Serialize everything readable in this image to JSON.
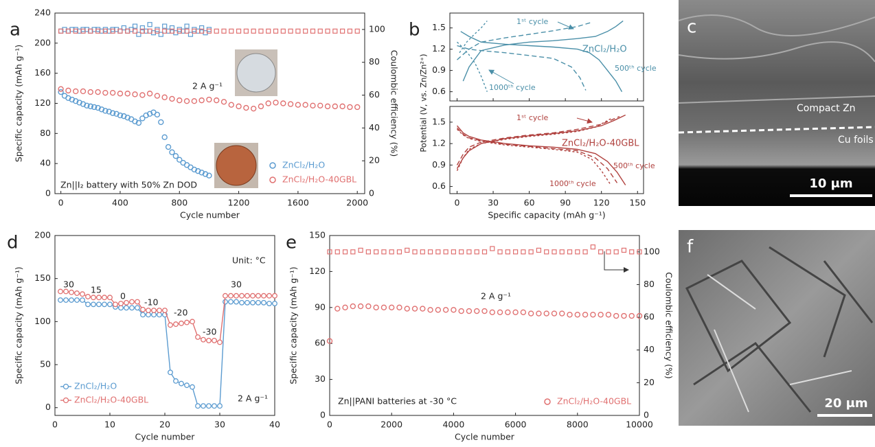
{
  "chart_data": [
    {
      "type": "scatter",
      "panel": "a",
      "xlabel": "Cycle number",
      "ylabel": "Specific capacity (mAh g⁻¹)",
      "y2label": "Coulombic efficiency (%)",
      "xlim": [
        -40,
        2050
      ],
      "xticks": [
        0,
        400,
        800,
        1200,
        1600,
        2000
      ],
      "ylim": [
        0,
        240
      ],
      "yticks": [
        0,
        40,
        80,
        120,
        160,
        200,
        240
      ],
      "y2lim": [
        0,
        110
      ],
      "y2ticks": [
        0,
        20,
        40,
        60,
        80,
        100
      ],
      "annotations": [
        "2 A g⁻¹",
        "Zn||I₂ battery with 50% Zn DOD"
      ],
      "legend": "lower right",
      "series": [
        {
          "name": "ZnCl₂/H₂O",
          "color": "#5b9bd0",
          "x": [
            0,
            25,
            50,
            75,
            100,
            125,
            150,
            175,
            200,
            225,
            250,
            275,
            300,
            325,
            350,
            375,
            400,
            425,
            450,
            475,
            500,
            525,
            550,
            575,
            600,
            625,
            650,
            675,
            700,
            725,
            750,
            775,
            800,
            825,
            850,
            875,
            900,
            925,
            950,
            975,
            1000
          ],
          "values": [
            135,
            130,
            127,
            125,
            123,
            121,
            119,
            117,
            116,
            115,
            114,
            112,
            110,
            109,
            107,
            106,
            104,
            103,
            101,
            99,
            96,
            94,
            100,
            104,
            106,
            108,
            105,
            95,
            75,
            62,
            55,
            50,
            45,
            41,
            38,
            35,
            32,
            30,
            28,
            26,
            24
          ],
          "y2_values": [
            99,
            100,
            99,
            100,
            100,
            99,
            100,
            100,
            99,
            100,
            100,
            99,
            100,
            99,
            100,
            100,
            99,
            101,
            99,
            100,
            102,
            97,
            101,
            99,
            103,
            98,
            100,
            97,
            102,
            99,
            101,
            98,
            100,
            99,
            102,
            97,
            100,
            99,
            101,
            98,
            100
          ]
        },
        {
          "name": "ZnCl₂/H₂O-40GBL",
          "color": "#e07070",
          "x": [
            0,
            50,
            100,
            150,
            200,
            250,
            300,
            350,
            400,
            450,
            500,
            550,
            600,
            650,
            700,
            750,
            800,
            850,
            900,
            950,
            1000,
            1050,
            1100,
            1150,
            1200,
            1250,
            1300,
            1350,
            1400,
            1450,
            1500,
            1550,
            1600,
            1650,
            1700,
            1750,
            1800,
            1850,
            1900,
            1950,
            2000
          ],
          "values": [
            139,
            137,
            136,
            136,
            135,
            135,
            134,
            134,
            133,
            133,
            132,
            131,
            133,
            130,
            128,
            126,
            124,
            123,
            123,
            124,
            125,
            124,
            122,
            118,
            116,
            114,
            113,
            116,
            120,
            121,
            120,
            119,
            118,
            118,
            117,
            117,
            116,
            116,
            116,
            115,
            115
          ],
          "y2_values": [
            99,
            99,
            99,
            99,
            99,
            99,
            99,
            99,
            99,
            99,
            99,
            99,
            99,
            99,
            99,
            99,
            99,
            99,
            99,
            99,
            99,
            99,
            99,
            99,
            99,
            99,
            99,
            99,
            99,
            99,
            99,
            99,
            99,
            99,
            99,
            99,
            99,
            99,
            99,
            99,
            99
          ]
        }
      ]
    },
    {
      "type": "line",
      "panel": "b",
      "xlabel": "Specific capacity (mAh g⁻¹)",
      "ylabel": "Potential (V, vs. Zn/Zn²⁺)",
      "xlim": [
        -6,
        155
      ],
      "xticks": [
        0,
        30,
        60,
        90,
        120,
        150
      ],
      "subplots": [
        {
          "label": "ZnCl₂/H₂O",
          "color": "#4a8fa8",
          "ylim": [
            0.47,
            1.71
          ],
          "yticks": [
            0.6,
            0.9,
            1.2,
            1.5
          ],
          "series": [
            {
              "name": "1ˢᵗ cycle",
              "dash": "solid",
              "x": [
                5,
                10,
                20,
                40,
                60,
                80,
                100,
                115,
                125,
                132,
                138,
                null,
                3,
                10,
                20,
                40,
                60,
                80,
                100,
                110,
                118,
                125,
                132,
                137
              ],
              "values": [
                0.75,
                0.95,
                1.18,
                1.26,
                1.3,
                1.32,
                1.35,
                1.38,
                1.45,
                1.52,
                1.6,
                null,
                1.45,
                1.38,
                1.3,
                1.27,
                1.25,
                1.23,
                1.2,
                1.15,
                1.05,
                0.9,
                0.75,
                0.6
              ]
            },
            {
              "name": "500ᵗʰ cycle",
              "dash": "long",
              "x": [
                0,
                10,
                20,
                40,
                60,
                80,
                100,
                112,
                null,
                0,
                10,
                20,
                40,
                60,
                80,
                95,
                102,
                107
              ],
              "values": [
                1.05,
                1.2,
                1.3,
                1.36,
                1.41,
                1.46,
                1.52,
                1.58,
                null,
                1.25,
                1.2,
                1.18,
                1.15,
                1.11,
                1.07,
                0.95,
                0.8,
                0.62
              ]
            },
            {
              "name": "1000ᵗʰ cycle",
              "dash": "short",
              "x": [
                2,
                8,
                15,
                20,
                25,
                null,
                0,
                5,
                10,
                15,
                20,
                25
              ],
              "values": [
                1.15,
                1.3,
                1.42,
                1.5,
                1.6,
                null,
                1.3,
                1.22,
                1.12,
                1.0,
                0.82,
                0.6
              ]
            }
          ]
        },
        {
          "label": "ZnCl₂/H₂O-40GBL",
          "color": "#b0413e",
          "ylim": [
            0.5,
            1.72
          ],
          "yticks": [
            0.6,
            0.9,
            1.2,
            1.5
          ],
          "series": [
            {
              "name": "1ˢᵗ cycle",
              "dash": "solid",
              "x": [
                0,
                5,
                10,
                20,
                40,
                60,
                80,
                100,
                120,
                130,
                140,
                null,
                0,
                5,
                10,
                20,
                40,
                60,
                80,
                100,
                115,
                125,
                133,
                140
              ],
              "values": [
                0.85,
                1.0,
                1.1,
                1.2,
                1.27,
                1.31,
                1.34,
                1.38,
                1.45,
                1.52,
                1.6,
                null,
                1.45,
                1.35,
                1.3,
                1.25,
                1.2,
                1.17,
                1.15,
                1.12,
                1.06,
                0.95,
                0.8,
                0.62
              ]
            },
            {
              "name": "500ᵗʰ cycle",
              "dash": "long",
              "x": [
                0,
                5,
                10,
                20,
                40,
                60,
                80,
                100,
                120,
                135,
                null,
                0,
                5,
                10,
                20,
                40,
                60,
                80,
                100,
                115,
                125,
                133
              ],
              "values": [
                0.9,
                1.05,
                1.15,
                1.22,
                1.28,
                1.32,
                1.35,
                1.4,
                1.47,
                1.58,
                null,
                1.42,
                1.33,
                1.28,
                1.24,
                1.19,
                1.16,
                1.13,
                1.1,
                1.0,
                0.85,
                0.65
              ]
            },
            {
              "name": "1000ᵗʰ cycle",
              "dash": "short",
              "x": [
                0,
                5,
                10,
                20,
                40,
                60,
                80,
                100,
                115,
                128,
                null,
                0,
                5,
                10,
                20,
                40,
                60,
                80,
                100,
                112,
                120,
                127
              ],
              "values": [
                0.82,
                1.0,
                1.12,
                1.2,
                1.26,
                1.3,
                1.33,
                1.37,
                1.43,
                1.55,
                null,
                1.4,
                1.32,
                1.27,
                1.23,
                1.18,
                1.15,
                1.12,
                1.08,
                0.98,
                0.82,
                0.64
              ]
            }
          ]
        }
      ]
    },
    {
      "type": "line",
      "panel": "d",
      "xlabel": "Cycle number",
      "ylabel": "Specific capacity (mAh g⁻¹)",
      "xlim": [
        0,
        40
      ],
      "xticks": [
        0,
        10,
        20,
        30,
        40
      ],
      "ylim": [
        -9,
        200
      ],
      "yticks": [
        0,
        50,
        100,
        150,
        200
      ],
      "annotations": [
        "30",
        "15",
        "0",
        "-10",
        "-20",
        "-30",
        "30",
        "Unit: °C",
        "2 A g⁻¹"
      ],
      "legend": "lower left",
      "series": [
        {
          "name": "ZnCl₂/H₂O",
          "color": "#5b9bd0",
          "x": [
            1,
            2,
            3,
            4,
            5,
            6,
            7,
            8,
            9,
            10,
            11,
            12,
            13,
            14,
            15,
            16,
            17,
            18,
            19,
            20,
            21,
            22,
            23,
            24,
            25,
            26,
            27,
            28,
            29,
            30,
            31,
            32,
            33,
            34,
            35,
            36,
            37,
            38,
            39,
            40
          ],
          "values": [
            125,
            125,
            125,
            125,
            125,
            120,
            120,
            120,
            120,
            120,
            117,
            116,
            116,
            116,
            116,
            108,
            108,
            108,
            108,
            108,
            41,
            31,
            28,
            26,
            24,
            2,
            2,
            2,
            2,
            2,
            123,
            123,
            123,
            122,
            122,
            122,
            122,
            122,
            121,
            121
          ]
        },
        {
          "name": "ZnCl₂/H₂O-40GBL",
          "color": "#e07070",
          "x": [
            1,
            2,
            3,
            4,
            5,
            6,
            7,
            8,
            9,
            10,
            11,
            12,
            13,
            14,
            15,
            16,
            17,
            18,
            19,
            20,
            21,
            22,
            23,
            24,
            25,
            26,
            27,
            28,
            29,
            30,
            31,
            32,
            33,
            34,
            35,
            36,
            37,
            38,
            39,
            40
          ],
          "values": [
            135,
            135,
            134,
            133,
            132,
            129,
            128,
            128,
            128,
            128,
            120,
            121,
            122,
            123,
            123,
            114,
            113,
            113,
            113,
            113,
            96,
            97,
            98,
            99,
            100,
            82,
            79,
            78,
            78,
            76,
            130,
            130,
            130,
            130,
            130,
            130,
            130,
            130,
            130,
            130
          ]
        }
      ]
    },
    {
      "type": "scatter",
      "panel": "e",
      "xlabel": "Cycle number",
      "ylabel": "Specific capacity (mAh g⁻¹)",
      "y2label": "Coulombic efficiency (%)",
      "xlim": [
        0,
        10000
      ],
      "xticks": [
        0,
        2000,
        4000,
        6000,
        8000,
        10000
      ],
      "ylim": [
        0,
        150
      ],
      "yticks": [
        0,
        30,
        60,
        90,
        120,
        150
      ],
      "y2lim": [
        0,
        110
      ],
      "y2ticks": [
        0,
        20,
        40,
        60,
        80,
        100
      ],
      "annotations": [
        "2 A g⁻¹",
        "Zn||PANI batteries at -30 °C"
      ],
      "legend": "lower right",
      "series": [
        {
          "name": "ZnCl₂/H₂O-40GBL",
          "color": "#e07070",
          "x": [
            0,
            250,
            500,
            750,
            1000,
            1250,
            1500,
            1750,
            2000,
            2250,
            2500,
            2750,
            3000,
            3250,
            3500,
            3750,
            4000,
            4250,
            4500,
            4750,
            5000,
            5250,
            5500,
            5750,
            6000,
            6250,
            6500,
            6750,
            7000,
            7250,
            7500,
            7750,
            8000,
            8250,
            8500,
            8750,
            9000,
            9250,
            9500,
            9750,
            10000
          ],
          "values": [
            62,
            89,
            90,
            91,
            91,
            91,
            90,
            90,
            90,
            90,
            89,
            89,
            89,
            88,
            88,
            88,
            88,
            87,
            87,
            87,
            87,
            86,
            86,
            86,
            86,
            86,
            85,
            85,
            85,
            85,
            85,
            84,
            84,
            84,
            84,
            84,
            84,
            83,
            83,
            83,
            83
          ],
          "y2_values": [
            100,
            100,
            100,
            100,
            101,
            100,
            100,
            100,
            100,
            100,
            101,
            100,
            100,
            100,
            100,
            100,
            100,
            100,
            100,
            100,
            100,
            102,
            100,
            100,
            100,
            100,
            100,
            101,
            100,
            100,
            100,
            100,
            100,
            100,
            103,
            100,
            100,
            100,
            101,
            100,
            100
          ]
        }
      ]
    }
  ],
  "images": [
    {
      "panel": "c",
      "labels": [
        "Compact Zn",
        "Cu foils"
      ],
      "scale_bar": "10 μm"
    },
    {
      "panel": "f",
      "scale_bar": "20 μm"
    }
  ]
}
